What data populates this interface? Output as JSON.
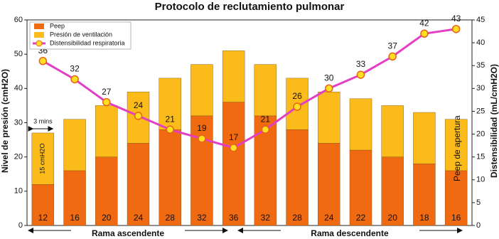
{
  "chart_data": {
    "type": "bar",
    "title": "Protocolo de reclutamiento pulmonar",
    "y_label": "Nivel de presión (cmH2O)",
    "y2_label": "Distensibilidad (mL/cmH2O)",
    "categories": [
      null,
      null,
      null,
      null,
      null,
      null,
      null,
      null,
      null,
      null,
      null,
      null,
      null,
      null
    ],
    "ylim": [
      0,
      60
    ],
    "yticks": [
      0,
      10,
      20,
      30,
      40,
      50,
      60
    ],
    "y2lim": [
      0,
      45
    ],
    "y2ticks": [
      0,
      5,
      10,
      15,
      20,
      25,
      30,
      35,
      40,
      45
    ],
    "legend": "upper left",
    "series": [
      {
        "name": "Peep",
        "color": "#f06a12",
        "values": [
          12,
          16,
          20,
          24,
          28,
          32,
          36,
          32,
          28,
          24,
          22,
          20,
          18,
          16
        ]
      },
      {
        "name": "Presión de ventilación",
        "color": "#fbbb1a",
        "values": [
          15,
          15,
          15,
          15,
          15,
          15,
          15,
          15,
          15,
          15,
          15,
          15,
          15,
          15
        ]
      },
      {
        "name": "Distensibilidad respiratoria",
        "color": "#e23fc4",
        "type": "line",
        "axis": "y2",
        "values": [
          36,
          32,
          27,
          24,
          21,
          19,
          17,
          21,
          26,
          30,
          33,
          37,
          42,
          43
        ]
      }
    ],
    "annotations": [
      "3 mins",
      "15 cmH2O",
      "Peep de apertura",
      "Rama ascendente",
      "Rama descendente"
    ]
  }
}
